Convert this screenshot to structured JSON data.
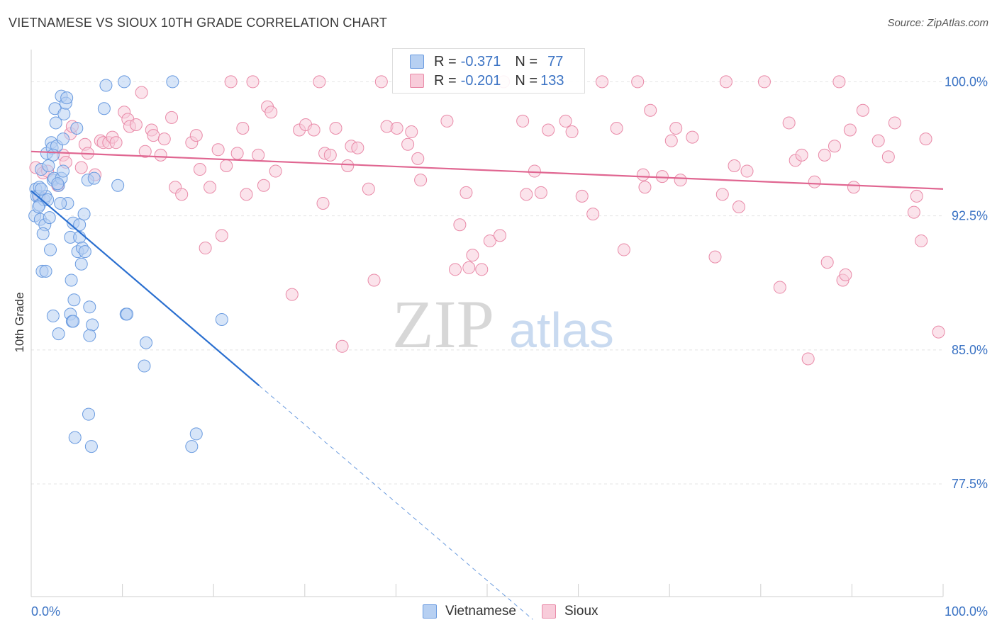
{
  "title": "VIETNAMESE VS SIOUX 10TH GRADE CORRELATION CHART",
  "source": "Source: ZipAtlas.com",
  "watermark": {
    "zip": "ZIP",
    "atlas": "atlas"
  },
  "legend": {
    "rows": [
      {
        "r_label": "R = ",
        "r_value": "-0.371",
        "n_label": "N = ",
        "n_value": "77",
        "color": "#a9c6ef",
        "border": "#6a9be0"
      },
      {
        "r_label": "R = ",
        "r_value": "-0.201",
        "n_label": "N = ",
        "n_value": "133",
        "color": "#f6bfd0",
        "border": "#e98aa8"
      }
    ]
  },
  "bottom_legend": [
    {
      "label": "Vietnamese",
      "color": "#a9c6ef",
      "border": "#6a9be0"
    },
    {
      "label": "Sioux",
      "color": "#f6bfd0",
      "border": "#e98aa8"
    }
  ],
  "chart_data": {
    "type": "scatter",
    "xlabel": "",
    "ylabel": "10th Grade",
    "xlim": [
      0,
      100
    ],
    "ylim": [
      71.2,
      101.8
    ],
    "x_tick_labels": [
      "0.0%",
      "100.0%"
    ],
    "y_ticks": [
      77.5,
      85.0,
      92.5,
      100.0
    ],
    "y_tick_labels": [
      "77.5%",
      "85.0%",
      "92.5%",
      "100.0%"
    ],
    "grid": true,
    "colors": {
      "vietnamese": "#6a9be0",
      "vietnamese_fill": "#b7d0f2",
      "vietnamese_line": "#2a6fd0",
      "sioux": "#e98aa8",
      "sioux_fill": "#f8ccda",
      "sioux_line": "#e06691"
    },
    "series": [
      {
        "name": "Vietnamese",
        "trend": {
          "x0": 0.0,
          "y0": 93.9,
          "x1": 25.0,
          "y1": 83.0,
          "dash_x_end": 55.0
        },
        "points": [
          [
            0.4,
            92.5
          ],
          [
            0.5,
            94.0
          ],
          [
            0.6,
            93.6
          ],
          [
            0.8,
            93.6
          ],
          [
            1.0,
            92.3
          ],
          [
            0.9,
            94.1
          ],
          [
            1.1,
            95.1
          ],
          [
            0.9,
            93.1
          ],
          [
            1.4,
            93.4
          ],
          [
            1.6,
            93.6
          ],
          [
            1.8,
            93.4
          ],
          [
            1.5,
            92.0
          ],
          [
            2.0,
            92.4
          ],
          [
            1.3,
            91.5
          ],
          [
            1.7,
            96.0
          ],
          [
            2.2,
            96.6
          ],
          [
            2.3,
            96.3
          ],
          [
            2.4,
            94.5
          ],
          [
            2.8,
            96.4
          ],
          [
            2.5,
            94.6
          ],
          [
            3.3,
            99.2
          ],
          [
            2.6,
            98.5
          ],
          [
            2.7,
            97.7
          ],
          [
            3.0,
            94.2
          ],
          [
            3.3,
            94.6
          ],
          [
            3.5,
            96.8
          ],
          [
            3.6,
            98.2
          ],
          [
            3.8,
            98.8
          ],
          [
            3.9,
            99.1
          ],
          [
            4.0,
            93.2
          ],
          [
            4.3,
            91.3
          ],
          [
            4.4,
            88.9
          ],
          [
            4.6,
            92.1
          ],
          [
            4.7,
            87.8
          ],
          [
            5.0,
            97.4
          ],
          [
            5.1,
            90.5
          ],
          [
            5.3,
            92.0
          ],
          [
            5.3,
            91.3
          ],
          [
            5.6,
            90.7
          ],
          [
            5.8,
            92.6
          ],
          [
            5.9,
            90.5
          ],
          [
            6.2,
            94.5
          ],
          [
            6.4,
            87.4
          ],
          [
            6.7,
            86.4
          ],
          [
            6.9,
            94.6
          ],
          [
            3.2,
            93.2
          ],
          [
            2.9,
            94.3
          ],
          [
            2.1,
            90.6
          ],
          [
            1.2,
            89.4
          ],
          [
            1.6,
            89.4
          ],
          [
            2.4,
            86.9
          ],
          [
            3.0,
            85.9
          ],
          [
            4.3,
            87.0
          ],
          [
            4.5,
            86.6
          ],
          [
            4.6,
            86.6
          ],
          [
            6.4,
            85.8
          ],
          [
            8.0,
            98.5
          ],
          [
            8.2,
            99.8
          ],
          [
            9.5,
            94.2
          ],
          [
            10.2,
            100.0
          ],
          [
            10.4,
            87.0
          ],
          [
            10.5,
            87.0
          ],
          [
            12.6,
            85.4
          ],
          [
            12.4,
            84.1
          ],
          [
            15.5,
            100.0
          ],
          [
            20.9,
            86.7
          ],
          [
            6.3,
            81.4
          ],
          [
            4.8,
            80.1
          ],
          [
            6.6,
            79.6
          ],
          [
            17.6,
            79.6
          ],
          [
            18.1,
            80.3
          ],
          [
            2.4,
            95.9
          ],
          [
            1.1,
            94.0
          ],
          [
            3.5,
            95.0
          ],
          [
            5.5,
            89.8
          ],
          [
            0.8,
            93.0
          ],
          [
            1.9,
            95.3
          ]
        ]
      },
      {
        "name": "Sioux",
        "trend": {
          "x0": 0.0,
          "y0": 96.1,
          "x1": 100.0,
          "y1": 94.0
        },
        "points": [
          [
            0.5,
            95.2
          ],
          [
            0.9,
            93.6
          ],
          [
            1.3,
            94.9
          ],
          [
            1.8,
            95.0
          ],
          [
            2.9,
            94.2
          ],
          [
            3.5,
            95.9
          ],
          [
            3.8,
            95.5
          ],
          [
            4.3,
            97.1
          ],
          [
            4.5,
            97.5
          ],
          [
            5.5,
            95.2
          ],
          [
            5.9,
            96.5
          ],
          [
            6.2,
            96.0
          ],
          [
            7.0,
            94.8
          ],
          [
            7.6,
            96.7
          ],
          [
            7.9,
            96.6
          ],
          [
            8.5,
            96.6
          ],
          [
            8.9,
            96.9
          ],
          [
            9.3,
            96.6
          ],
          [
            10.2,
            98.3
          ],
          [
            10.6,
            97.9
          ],
          [
            10.8,
            97.5
          ],
          [
            11.5,
            97.6
          ],
          [
            12.1,
            99.4
          ],
          [
            12.5,
            96.1
          ],
          [
            13.2,
            97.3
          ],
          [
            13.4,
            97.0
          ],
          [
            14.2,
            95.9
          ],
          [
            14.6,
            96.8
          ],
          [
            15.4,
            98.0
          ],
          [
            15.8,
            94.1
          ],
          [
            16.5,
            93.7
          ],
          [
            17.6,
            96.6
          ],
          [
            18.1,
            97.0
          ],
          [
            18.5,
            95.1
          ],
          [
            19.1,
            90.7
          ],
          [
            19.6,
            94.1
          ],
          [
            20.5,
            96.2
          ],
          [
            20.9,
            91.4
          ],
          [
            21.4,
            95.3
          ],
          [
            21.9,
            100.0
          ],
          [
            22.6,
            96.0
          ],
          [
            23.2,
            97.4
          ],
          [
            23.6,
            93.7
          ],
          [
            24.3,
            100.0
          ],
          [
            24.9,
            95.9
          ],
          [
            25.5,
            94.2
          ],
          [
            25.9,
            98.6
          ],
          [
            26.3,
            98.3
          ],
          [
            26.8,
            95.0
          ],
          [
            28.6,
            88.1
          ],
          [
            29.4,
            97.3
          ],
          [
            30.1,
            97.6
          ],
          [
            31.0,
            97.3
          ],
          [
            31.6,
            100.0
          ],
          [
            32.0,
            93.2
          ],
          [
            32.2,
            96.0
          ],
          [
            32.8,
            95.9
          ],
          [
            33.4,
            97.4
          ],
          [
            34.1,
            85.2
          ],
          [
            34.7,
            95.3
          ],
          [
            35.1,
            96.4
          ],
          [
            35.8,
            96.3
          ],
          [
            37.6,
            88.9
          ],
          [
            38.4,
            100.0
          ],
          [
            39.0,
            97.5
          ],
          [
            40.1,
            97.4
          ],
          [
            41.3,
            96.5
          ],
          [
            41.7,
            97.2
          ],
          [
            42.4,
            95.7
          ],
          [
            42.7,
            94.5
          ],
          [
            46.5,
            89.5
          ],
          [
            47.0,
            92.0
          ],
          [
            47.7,
            93.8
          ],
          [
            48.0,
            89.6
          ],
          [
            48.4,
            90.3
          ],
          [
            49.4,
            89.5
          ],
          [
            50.3,
            91.1
          ],
          [
            51.4,
            91.4
          ],
          [
            53.9,
            97.8
          ],
          [
            54.3,
            93.7
          ],
          [
            55.2,
            95.0
          ],
          [
            55.9,
            93.8
          ],
          [
            56.7,
            97.3
          ],
          [
            58.6,
            97.8
          ],
          [
            59.3,
            97.2
          ],
          [
            60.4,
            93.6
          ],
          [
            61.6,
            92.6
          ],
          [
            62.6,
            100.0
          ],
          [
            64.2,
            97.4
          ],
          [
            65.0,
            90.6
          ],
          [
            66.5,
            100.0
          ],
          [
            67.1,
            94.8
          ],
          [
            67.3,
            94.1
          ],
          [
            67.9,
            98.4
          ],
          [
            69.2,
            94.7
          ],
          [
            70.2,
            96.7
          ],
          [
            70.7,
            97.4
          ],
          [
            71.2,
            94.5
          ],
          [
            72.5,
            96.9
          ],
          [
            75.0,
            90.2
          ],
          [
            75.8,
            93.7
          ],
          [
            77.1,
            95.3
          ],
          [
            77.6,
            93.0
          ],
          [
            78.5,
            95.0
          ],
          [
            80.4,
            100.0
          ],
          [
            82.1,
            88.5
          ],
          [
            83.1,
            97.7
          ],
          [
            83.8,
            95.6
          ],
          [
            84.5,
            95.9
          ],
          [
            85.2,
            84.5
          ],
          [
            85.9,
            94.4
          ],
          [
            87.0,
            95.9
          ],
          [
            87.3,
            89.9
          ],
          [
            88.1,
            96.4
          ],
          [
            88.6,
            100.0
          ],
          [
            89.0,
            88.9
          ],
          [
            89.3,
            89.2
          ],
          [
            89.8,
            97.3
          ],
          [
            90.2,
            94.1
          ],
          [
            91.2,
            98.4
          ],
          [
            92.9,
            96.7
          ],
          [
            94.0,
            95.8
          ],
          [
            94.7,
            97.7
          ],
          [
            96.8,
            92.7
          ],
          [
            97.1,
            93.6
          ],
          [
            97.6,
            91.1
          ],
          [
            98.1,
            96.8
          ],
          [
            99.5,
            86.0
          ],
          [
            76.2,
            100.0
          ],
          [
            51.8,
            100.0
          ],
          [
            45.6,
            97.8
          ],
          [
            37.0,
            94.0
          ]
        ]
      }
    ]
  }
}
